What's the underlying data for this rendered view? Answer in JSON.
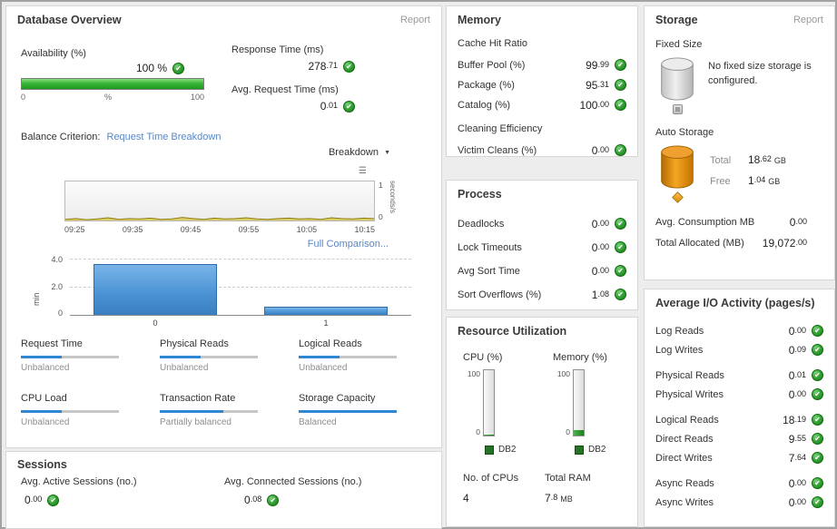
{
  "colors": {
    "ok_green": "#2e9b2e",
    "bar_blue": "#4a92d4",
    "link_blue": "#5b87c2",
    "balance_blue": "#2f86d2",
    "gauge_green": "#2e7d2e",
    "spark_olive": "#b5a028",
    "storage_orange": "#e08b00"
  },
  "icons": {
    "check": "✔",
    "chevron_down": "▼",
    "chart_options": "☰"
  },
  "panels": {
    "database_overview": {
      "title": "Database Overview",
      "report_link": "Report",
      "availability": {
        "label": "Availability (%)",
        "value": "100 %",
        "percent": 100,
        "scale_min": "0",
        "scale_mid": "%",
        "scale_max": "100"
      },
      "response_time": {
        "label": "Response Time (ms)",
        "value": "278.71"
      },
      "avg_request_time": {
        "label": "Avg. Request Time (ms)",
        "value": "0.01"
      },
      "balance_criterion_label": "Balance Criterion:",
      "balance_criterion_link": "Request Time Breakdown",
      "breakdown_label": "Breakdown",
      "full_comparison_link": "Full Comparison...",
      "balance_items": [
        {
          "label": "Request Time",
          "status": "Unbalanced",
          "pct": 42
        },
        {
          "label": "Physical Reads",
          "status": "Unbalanced",
          "pct": 42
        },
        {
          "label": "Logical Reads",
          "status": "Unbalanced",
          "pct": 42
        },
        {
          "label": "CPU Load",
          "status": "Unbalanced",
          "pct": 42
        },
        {
          "label": "Transaction Rate",
          "status": "Partially balanced",
          "pct": 65
        },
        {
          "label": "Storage Capacity",
          "status": "Balanced",
          "pct": 100
        }
      ]
    },
    "sessions": {
      "title": "Sessions",
      "items": [
        {
          "label": "Avg. Active Sessions (no.)",
          "value": "0.00"
        },
        {
          "label": "Avg. Connected Sessions (no.)",
          "value": "0.08"
        }
      ]
    },
    "memory": {
      "title": "Memory",
      "group1_heading": "Cache Hit Ratio",
      "group1": [
        {
          "label": "Buffer Pool (%)",
          "value": "99.99"
        },
        {
          "label": "Package (%)",
          "value": "95.31"
        },
        {
          "label": "Catalog (%)",
          "value": "100.00"
        }
      ],
      "group2_heading": "Cleaning Efficiency",
      "group2": [
        {
          "label": "Victim Cleans (%)",
          "value": "0.00"
        }
      ]
    },
    "process": {
      "title": "Process",
      "items": [
        {
          "label": "Deadlocks",
          "value": "0.00"
        },
        {
          "label": "Lock Timeouts",
          "value": "0.00"
        },
        {
          "label": "Avg Sort Time",
          "value": "0.00"
        },
        {
          "label": "Sort Overflows (%)",
          "value": "1.08"
        }
      ]
    },
    "resource_utilization": {
      "title": "Resource Utilization",
      "gauges": [
        {
          "label": "CPU (%)",
          "max": "100",
          "min": "0",
          "value": 2,
          "legend": "DB2"
        },
        {
          "label": "Memory (%)",
          "max": "100",
          "min": "0",
          "value": 8,
          "legend": "DB2"
        }
      ],
      "cpus": {
        "label": "No. of CPUs",
        "value": "4"
      },
      "ram": {
        "label": "Total RAM",
        "value": "7.8",
        "unit": "MB"
      }
    },
    "storage": {
      "title": "Storage",
      "report_link": "Report",
      "fixed": {
        "label": "Fixed Size",
        "message": "No fixed size storage is configured."
      },
      "auto": {
        "label": "Auto Storage",
        "total": {
          "label": "Total",
          "value": "18.62",
          "unit": "GB"
        },
        "free": {
          "label": "Free",
          "value": "1.04",
          "unit": "GB"
        }
      },
      "stats": [
        {
          "label": "Avg. Consumption MB",
          "value": "0.00"
        },
        {
          "label": "Total Allocated (MB)",
          "value": "19,072.00"
        }
      ]
    },
    "io": {
      "title": "Average I/O Activity (pages/s)",
      "rows": [
        {
          "label": "Log Reads",
          "value": "0.00"
        },
        {
          "label": "Log Writes",
          "value": "0.09"
        },
        {
          "label": "Physical Reads",
          "value": "0.01"
        },
        {
          "label": "Physical Writes",
          "value": "0.00"
        },
        {
          "label": "Logical Reads",
          "value": "18.19"
        },
        {
          "label": "Direct Reads",
          "value": "9.55"
        },
        {
          "label": "Direct Writes",
          "value": "7.64"
        },
        {
          "label": "Async Reads",
          "value": "0.00"
        },
        {
          "label": "Async Writes",
          "value": "0.00"
        }
      ]
    }
  },
  "chart_data": [
    {
      "type": "line",
      "title": "Breakdown",
      "x": [
        "09:25",
        "09:35",
        "09:45",
        "09:55",
        "10:05",
        "10:15"
      ],
      "ylabel": "seconds/s",
      "ylim": [
        0,
        1
      ],
      "yticks": [
        "1",
        "0"
      ],
      "grid": false,
      "legend_position": "none",
      "series": [
        {
          "name": "Request Time Breakdown",
          "values": [
            0.03,
            0.05,
            0.02,
            0.04,
            0.07,
            0.03,
            0.05,
            0.04,
            0.06,
            0.03,
            0.04,
            0.08,
            0.05,
            0.03,
            0.06,
            0.04,
            0.05,
            0.07,
            0.04,
            0.03,
            0.05,
            0.06,
            0.04,
            0.05,
            0.03,
            0.07,
            0.05,
            0.04,
            0.06,
            0.05
          ]
        }
      ]
    },
    {
      "type": "bar",
      "categories": [
        "0",
        "1"
      ],
      "values": [
        3.6,
        0.55
      ],
      "title": "Full Comparison",
      "xlabel": "",
      "ylabel": "min",
      "ylim": [
        0,
        4
      ],
      "yticks": [
        "4.0",
        "2.0",
        "0"
      ]
    }
  ]
}
